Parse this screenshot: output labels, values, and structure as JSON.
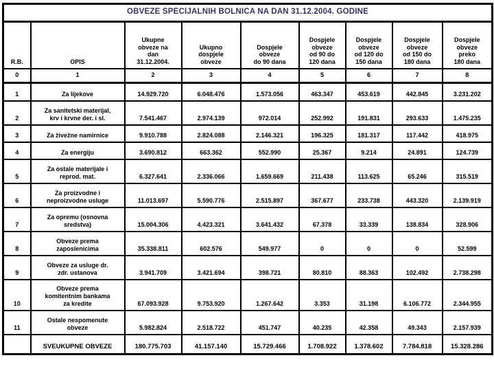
{
  "title": "OBVEZE SPECIJALNIH BOLNICA NA DAN 31.12.2004. GODINE",
  "colors": {
    "title_text": "#333366",
    "border": "#000000",
    "body_text": "#000000",
    "background": "#ffffff"
  },
  "table": {
    "headers": [
      "R.B.",
      "OPIS",
      "Ukupne\nobveze na\ndan\n31.12.2004.",
      "Ukupno\ndospjele\nobveze",
      "Dospjele\nobveze\ndo 90 dana",
      "Dospjele\nobveze\nod 90 do\n120 dana",
      "Dospjele\nobveze\nod 120 do\n150 dana",
      "Dospjele\nobveze\nod 150 do\n180 dana",
      "Dospjele\nobveze\npreko\n180 dana"
    ],
    "index_row": [
      "0",
      "1",
      "2",
      "3",
      "4",
      "5",
      "6",
      "7",
      "8"
    ],
    "rows": [
      {
        "rb": "1",
        "opis": "Za lijekove",
        "values": [
          "14.929.720",
          "6.048.476",
          "1.573.056",
          "463.347",
          "453.619",
          "442.845",
          "3.231.202"
        ]
      },
      {
        "rb": "2",
        "opis": "Za sanitetski materijal,\nkrv i krvne der. i sl.",
        "values": [
          "7.541.467",
          "2.974.139",
          "972.014",
          "252.992",
          "191.831",
          "293.633",
          "1.475.235"
        ]
      },
      {
        "rb": "3",
        "opis": "Za živežne namirnice",
        "values": [
          "9.910.788",
          "2.824.088",
          "2.146.321",
          "196.325",
          "181.317",
          "117.442",
          "418.975"
        ]
      },
      {
        "rb": "4",
        "opis": "Za energiju",
        "values": [
          "3.690.812",
          "663.362",
          "552.990",
          "25.367",
          "9.214",
          "24.891",
          "124.739"
        ]
      },
      {
        "rb": "5",
        "opis": "Za ostale materijale i\nreprod. mat.",
        "values": [
          "6.327.641",
          "2.336.066",
          "1.659.669",
          "211.438",
          "113.625",
          "65.246",
          "315.519"
        ]
      },
      {
        "rb": "6",
        "opis": "Za proizvodne i\nneproizvodne usluge",
        "values": [
          "11.013.697",
          "5.590.776",
          "2.515.897",
          "367.677",
          "233.738",
          "443.320",
          "2.139.919"
        ]
      },
      {
        "rb": "7",
        "opis": "Za opremu (osnovna\nsredstva)",
        "values": [
          "15.004.306",
          "4.423.321",
          "3.641.432",
          "67.378",
          "33.339",
          "138.834",
          "328.906"
        ]
      },
      {
        "rb": "8",
        "opis": "Obveze prema\nzaposlenicima",
        "values": [
          "35.338.811",
          "602.576",
          "549.977",
          "0",
          "0",
          "0",
          "52.599"
        ]
      },
      {
        "rb": "9",
        "opis": "Obveze za usluge dr.\nzdr. ustanova",
        "values": [
          "3.941.709",
          "3.421.694",
          "398.721",
          "80.810",
          "88.363",
          "102.492",
          "2.738.298"
        ]
      },
      {
        "rb": "10",
        "opis": "Obveze prema\nkomitentnim bankama\nza kredite",
        "values": [
          "67.093.928",
          "9.753.920",
          "1.267.642",
          "3.353",
          "31.198",
          "6.106.772",
          "2.344.955"
        ]
      },
      {
        "rb": "11",
        "opis": "Ostale nespomenute\nobveze",
        "values": [
          "5.982.824",
          "2.518.722",
          "451.747",
          "40.235",
          "42.358",
          "49.343",
          "2.157.939"
        ]
      }
    ],
    "total_row": {
      "rb": "",
      "opis": "SVEUKUPNE OBVEZE",
      "values": [
        "180.775.703",
        "41.157.140",
        "15.729.466",
        "1.708.922",
        "1.378.602",
        "7.784.818",
        "15.328.286"
      ]
    }
  }
}
